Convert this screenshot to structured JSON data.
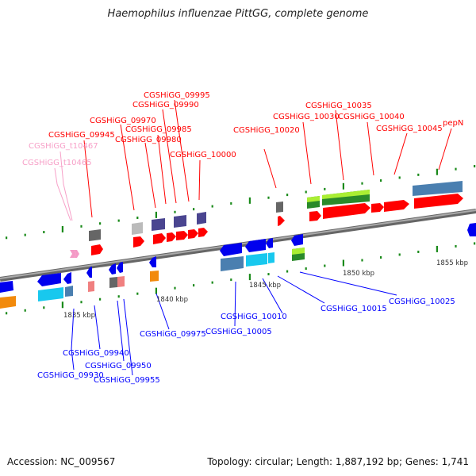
{
  "title": "Haemophilus influenzae PittGG, complete genome",
  "footer": {
    "accession": "Accession: NC_009567",
    "summary": "Topology: circular; Length: 1,887,192 bp; Genes: 1,741"
  },
  "ticks": [
    "1835 kbp",
    "1840 kbp",
    "1845 kbp",
    "1850 kbp",
    "1855 kbp"
  ],
  "labels_forward": [
    "CGSHiGG_09995",
    "CGSHiGG_09990",
    "CGSHiGG_09970",
    "CGSHiGG_09985",
    "CGSHiGG_09945",
    "CGSHiGG_09980",
    "CGSHiGG_10000",
    "CGSHiGG_10020",
    "CGSHiGG_10030",
    "CGSHiGG_10035",
    "CGSHiGG_10040",
    "CGSHiGG_10045",
    "pepN"
  ],
  "labels_trna": [
    "CGSHiGG_t10467",
    "CGSHiGG_t10465"
  ],
  "labels_reverse": [
    "CGSHiGG_09975",
    "CGSHiGG_10005",
    "CGSHiGG_10010",
    "CGSHiGG_10015",
    "CGSHiGG_10025",
    "CGSHiGG_09940",
    "CGSHiGG_09950",
    "CGSHiGG_09930",
    "CGSHiGG_09955"
  ],
  "colors": {
    "forward": "#ff0000",
    "reverse": "#0000ff",
    "trna": "#f7a0c8",
    "backbone": "#888888",
    "ticks": "#1a8a1a"
  }
}
